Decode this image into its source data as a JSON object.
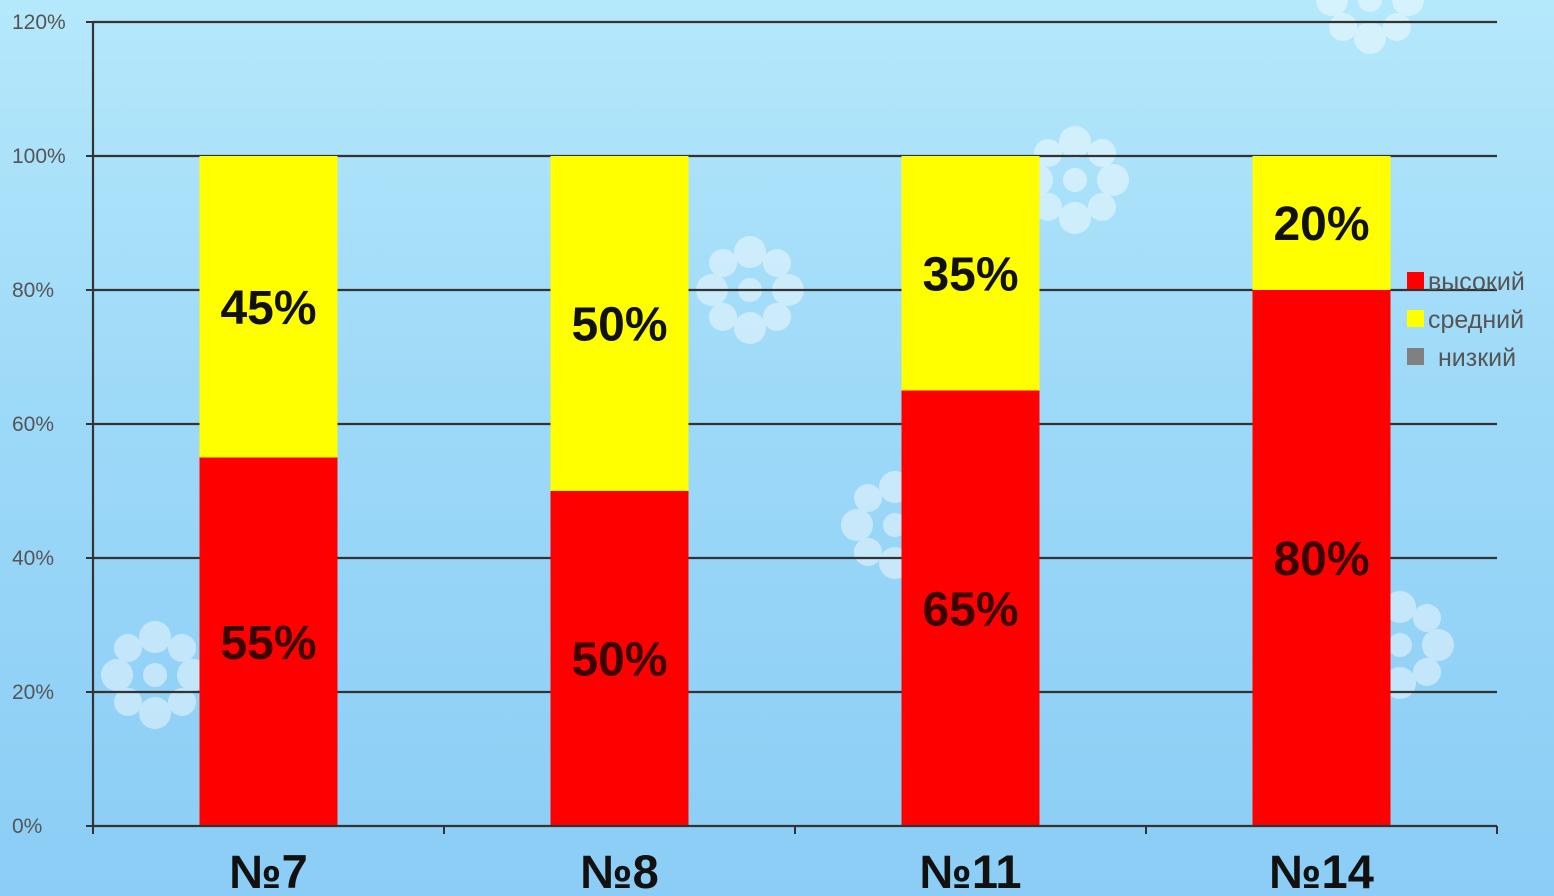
{
  "colors": {
    "high": "#ff0000",
    "medium": "#ffff00",
    "low": "#808080",
    "grid": "#333333",
    "label_on_red": "#3a0000",
    "label_on_yellow": "#111111"
  },
  "chart_data": {
    "type": "bar",
    "stacked": true,
    "title": "",
    "xlabel": "",
    "ylabel": "",
    "ylim": [
      0,
      120
    ],
    "y_ticks": [
      "0%",
      "20%",
      "40%",
      "60%",
      "80%",
      "100%",
      "120%"
    ],
    "grid": true,
    "legend_position": "right",
    "categories": [
      "№7",
      "№8",
      "№11",
      "№14"
    ],
    "series": [
      {
        "name": "высокий",
        "color": "#ff0000",
        "values": [
          55,
          50,
          65,
          80
        ],
        "labels": [
          "55%",
          "50%",
          "65%",
          "80%"
        ]
      },
      {
        "name": "средний",
        "color": "#ffff00",
        "values": [
          45,
          50,
          35,
          20
        ],
        "labels": [
          "45%",
          "50%",
          "35%",
          "20%"
        ]
      },
      {
        "name": "низкий",
        "color": "#808080",
        "values": [
          0,
          0,
          0,
          0
        ],
        "labels": [
          "",
          "",
          "",
          ""
        ]
      }
    ]
  }
}
